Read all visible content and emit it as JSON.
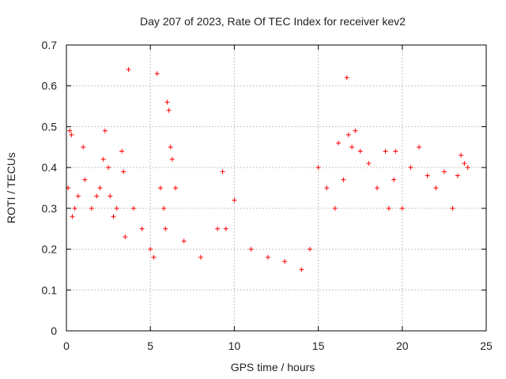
{
  "chart_data": {
    "type": "scatter",
    "title": "Day 207 of 2023, Rate Of TEC Index for receiver kev2",
    "xlabel": "GPS time / hours",
    "ylabel": "ROTI / TECUs",
    "xlim": [
      0,
      25
    ],
    "ylim": [
      0,
      0.7
    ],
    "xticks": [
      0,
      5,
      10,
      15,
      20,
      25
    ],
    "yticks": [
      0,
      0.1,
      0.2,
      0.3,
      0.4,
      0.5,
      0.6,
      0.7
    ],
    "grid": true,
    "marker": "+",
    "color": "#ff0000",
    "series": [
      {
        "name": "ROTI",
        "x": [
          0.1,
          0.2,
          0.3,
          0.35,
          0.5,
          0.7,
          1.0,
          1.1,
          1.5,
          1.8,
          2.0,
          2.2,
          2.3,
          2.5,
          2.6,
          2.8,
          3.0,
          3.3,
          3.4,
          3.5,
          3.7,
          4.0,
          4.5,
          5.0,
          5.2,
          5.4,
          5.6,
          5.8,
          5.9,
          6.0,
          6.1,
          6.2,
          6.3,
          6.5,
          7.0,
          8.0,
          9.0,
          9.3,
          9.5,
          10.0,
          11.0,
          12.0,
          13.0,
          14.0,
          14.5,
          15.0,
          15.5,
          16.0,
          16.2,
          16.5,
          16.7,
          16.8,
          17.0,
          17.2,
          17.5,
          18.0,
          18.5,
          19.0,
          19.2,
          19.5,
          19.6,
          20.0,
          20.5,
          21.0,
          21.5,
          22.0,
          22.5,
          23.0,
          23.3,
          23.5,
          23.7,
          23.9
        ],
        "y": [
          0.35,
          0.49,
          0.48,
          0.28,
          0.3,
          0.33,
          0.45,
          0.37,
          0.3,
          0.33,
          0.35,
          0.42,
          0.49,
          0.4,
          0.33,
          0.28,
          0.3,
          0.44,
          0.39,
          0.23,
          0.64,
          0.3,
          0.25,
          0.2,
          0.18,
          0.63,
          0.35,
          0.3,
          0.25,
          0.56,
          0.54,
          0.45,
          0.42,
          0.35,
          0.22,
          0.18,
          0.25,
          0.39,
          0.25,
          0.32,
          0.2,
          0.18,
          0.17,
          0.15,
          0.2,
          0.4,
          0.35,
          0.3,
          0.46,
          0.37,
          0.62,
          0.48,
          0.45,
          0.49,
          0.44,
          0.41,
          0.35,
          0.44,
          0.3,
          0.37,
          0.44,
          0.3,
          0.4,
          0.45,
          0.38,
          0.35,
          0.39,
          0.3,
          0.38,
          0.43,
          0.41,
          0.4
        ]
      }
    ]
  }
}
